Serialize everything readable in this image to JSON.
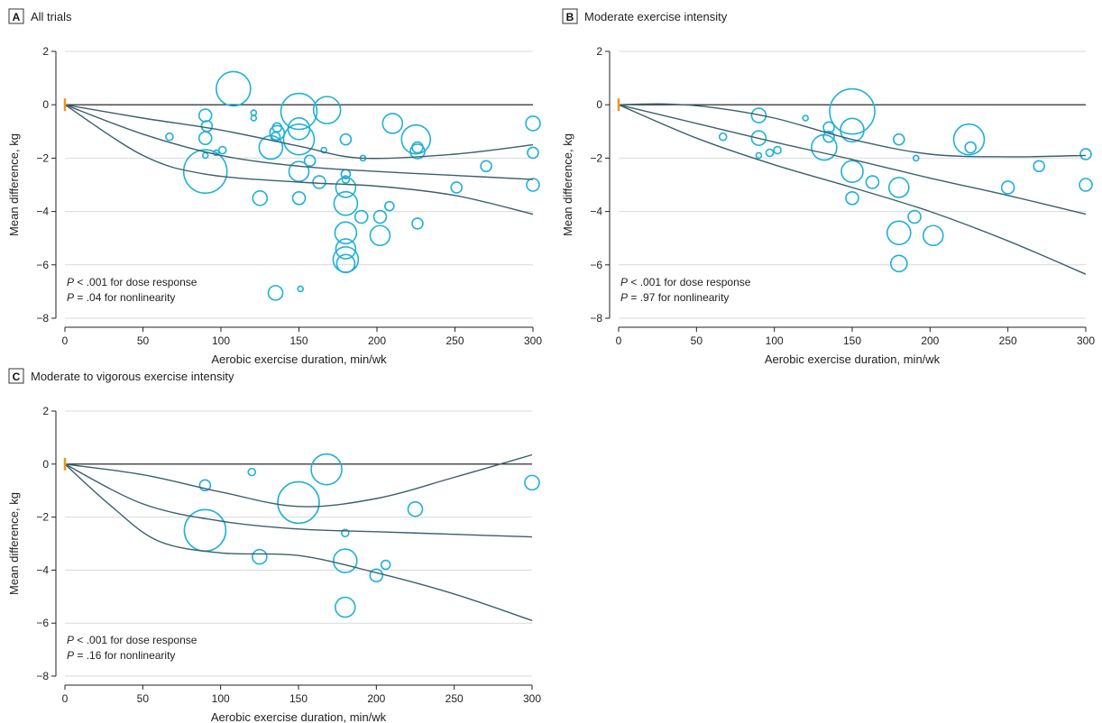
{
  "colors": {
    "bubble": "#1fb0d8",
    "curve": "#3d5f6b",
    "grid": "#d9d9d9",
    "axis": "#222222",
    "zero_line": "#111111",
    "origin_marker": "#f0961e"
  },
  "chart_data": [
    {
      "panel_letter": "A",
      "title": "All trials",
      "type": "scatter",
      "xlabel": "Aerobic exercise duration, min/wk",
      "ylabel": "Mean difference, kg",
      "xlim": [
        0,
        300
      ],
      "ylim": [
        -8,
        2
      ],
      "xticks": [
        0,
        50,
        100,
        150,
        200,
        250,
        300
      ],
      "yticks": [
        2,
        0,
        -2,
        -4,
        -6,
        -8
      ],
      "grid": true,
      "annotations": [
        {
          "italic": "P",
          "text": " < .001 for dose response"
        },
        {
          "italic": "P",
          "text": " = .04 for nonlinearity"
        }
      ],
      "points": [
        {
          "x": 108,
          "y": 0.6,
          "r": 19
        },
        {
          "x": 168,
          "y": -0.2,
          "r": 15
        },
        {
          "x": 150,
          "y": -0.25,
          "r": 20
        },
        {
          "x": 150,
          "y": -1.3,
          "r": 17
        },
        {
          "x": 150,
          "y": -0.9,
          "r": 12
        },
        {
          "x": 150,
          "y": -2.5,
          "r": 11
        },
        {
          "x": 210,
          "y": -0.7,
          "r": 11
        },
        {
          "x": 225,
          "y": -1.3,
          "r": 16
        },
        {
          "x": 226,
          "y": -1.6,
          "r": 6
        },
        {
          "x": 226,
          "y": -1.75,
          "r": 8
        },
        {
          "x": 300,
          "y": -0.7,
          "r": 8
        },
        {
          "x": 300,
          "y": -1.8,
          "r": 6
        },
        {
          "x": 300,
          "y": -3.0,
          "r": 7
        },
        {
          "x": 90,
          "y": -2.5,
          "r": 24
        },
        {
          "x": 90,
          "y": -0.4,
          "r": 7
        },
        {
          "x": 91,
          "y": -0.8,
          "r": 6
        },
        {
          "x": 90,
          "y": -1.25,
          "r": 7
        },
        {
          "x": 90,
          "y": -1.9,
          "r": 3
        },
        {
          "x": 67,
          "y": -1.2,
          "r": 4
        },
        {
          "x": 97,
          "y": -1.8,
          "r": 3
        },
        {
          "x": 101,
          "y": -1.7,
          "r": 4
        },
        {
          "x": 121,
          "y": -0.3,
          "r": 3
        },
        {
          "x": 121,
          "y": -0.5,
          "r": 3
        },
        {
          "x": 132,
          "y": -1.6,
          "r": 13
        },
        {
          "x": 136,
          "y": -0.85,
          "r": 5
        },
        {
          "x": 136,
          "y": -1.05,
          "r": 8
        },
        {
          "x": 135,
          "y": -1.2,
          "r": 5
        },
        {
          "x": 125,
          "y": -3.5,
          "r": 8
        },
        {
          "x": 150,
          "y": -3.5,
          "r": 7
        },
        {
          "x": 157,
          "y": -2.1,
          "r": 6
        },
        {
          "x": 163,
          "y": -2.9,
          "r": 7
        },
        {
          "x": 166,
          "y": -1.7,
          "r": 3
        },
        {
          "x": 180,
          "y": -1.3,
          "r": 6
        },
        {
          "x": 180,
          "y": -2.6,
          "r": 5
        },
        {
          "x": 180,
          "y": -2.8,
          "r": 4
        },
        {
          "x": 180,
          "y": -3.1,
          "r": 11
        },
        {
          "x": 180,
          "y": -3.7,
          "r": 13
        },
        {
          "x": 180,
          "y": -4.8,
          "r": 12
        },
        {
          "x": 180,
          "y": -5.4,
          "r": 11
        },
        {
          "x": 180,
          "y": -5.8,
          "r": 14
        },
        {
          "x": 180,
          "y": -5.95,
          "r": 10
        },
        {
          "x": 190,
          "y": -4.2,
          "r": 7
        },
        {
          "x": 191,
          "y": -2.0,
          "r": 3
        },
        {
          "x": 202,
          "y": -4.9,
          "r": 11
        },
        {
          "x": 202,
          "y": -4.2,
          "r": 7
        },
        {
          "x": 208,
          "y": -3.8,
          "r": 5
        },
        {
          "x": 226,
          "y": -4.45,
          "r": 6
        },
        {
          "x": 251,
          "y": -3.1,
          "r": 6
        },
        {
          "x": 270,
          "y": -2.3,
          "r": 6
        },
        {
          "x": 135,
          "y": -7.05,
          "r": 8
        },
        {
          "x": 151,
          "y": -6.9,
          "r": 3
        }
      ],
      "curves": {
        "fit": [
          [
            0,
            0
          ],
          [
            50,
            -1.1
          ],
          [
            100,
            -1.9
          ],
          [
            150,
            -2.3
          ],
          [
            200,
            -2.5
          ],
          [
            250,
            -2.65
          ],
          [
            300,
            -2.8
          ]
        ],
        "upper": [
          [
            0,
            0
          ],
          [
            50,
            -0.5
          ],
          [
            100,
            -0.95
          ],
          [
            150,
            -1.55
          ],
          [
            190,
            -2.0
          ],
          [
            250,
            -1.85
          ],
          [
            300,
            -1.5
          ]
        ],
        "lower": [
          [
            0,
            0
          ],
          [
            50,
            -1.9
          ],
          [
            90,
            -2.6
          ],
          [
            150,
            -2.9
          ],
          [
            200,
            -3.05
          ],
          [
            250,
            -3.4
          ],
          [
            300,
            -4.1
          ]
        ]
      }
    },
    {
      "panel_letter": "B",
      "title": "Moderate exercise intensity",
      "type": "scatter",
      "xlabel": "Aerobic exercise duration, min/wk",
      "ylabel": "Mean difference, kg",
      "xlim": [
        0,
        300
      ],
      "ylim": [
        -8,
        2
      ],
      "xticks": [
        0,
        50,
        100,
        150,
        200,
        250,
        300
      ],
      "yticks": [
        2,
        0,
        -2,
        -4,
        -6,
        -8
      ],
      "grid": true,
      "annotations": [
        {
          "italic": "P",
          "text": " < .001 for dose response"
        },
        {
          "italic": "P",
          "text": " = .97 for nonlinearity"
        }
      ],
      "points": [
        {
          "x": 150,
          "y": -0.25,
          "r": 25
        },
        {
          "x": 150,
          "y": -0.95,
          "r": 13
        },
        {
          "x": 225,
          "y": -1.3,
          "r": 17
        },
        {
          "x": 226,
          "y": -1.6,
          "r": 6
        },
        {
          "x": 90,
          "y": -0.4,
          "r": 8
        },
        {
          "x": 90,
          "y": -1.25,
          "r": 8
        },
        {
          "x": 90,
          "y": -1.9,
          "r": 3
        },
        {
          "x": 67,
          "y": -1.2,
          "r": 4
        },
        {
          "x": 97,
          "y": -1.8,
          "r": 4
        },
        {
          "x": 102,
          "y": -1.7,
          "r": 4
        },
        {
          "x": 120,
          "y": -0.5,
          "r": 3
        },
        {
          "x": 135,
          "y": -0.85,
          "r": 6
        },
        {
          "x": 135,
          "y": -1.2,
          "r": 6
        },
        {
          "x": 132,
          "y": -1.6,
          "r": 14
        },
        {
          "x": 150,
          "y": -2.5,
          "r": 12
        },
        {
          "x": 150,
          "y": -3.5,
          "r": 7
        },
        {
          "x": 163,
          "y": -2.9,
          "r": 7
        },
        {
          "x": 180,
          "y": -1.3,
          "r": 6
        },
        {
          "x": 180,
          "y": -3.1,
          "r": 11
        },
        {
          "x": 180,
          "y": -4.8,
          "r": 13
        },
        {
          "x": 180,
          "y": -5.95,
          "r": 9
        },
        {
          "x": 190,
          "y": -4.2,
          "r": 7
        },
        {
          "x": 191,
          "y": -2.0,
          "r": 3
        },
        {
          "x": 202,
          "y": -4.9,
          "r": 11
        },
        {
          "x": 250,
          "y": -3.1,
          "r": 7
        },
        {
          "x": 270,
          "y": -2.3,
          "r": 6
        },
        {
          "x": 300,
          "y": -1.85,
          "r": 6
        },
        {
          "x": 300,
          "y": -3.0,
          "r": 7
        }
      ],
      "curves": {
        "fit": [
          [
            0,
            0
          ],
          [
            50,
            -0.7
          ],
          [
            100,
            -1.4
          ],
          [
            150,
            -2.05
          ],
          [
            200,
            -2.75
          ],
          [
            250,
            -3.4
          ],
          [
            300,
            -4.1
          ]
        ],
        "upper": [
          [
            0,
            0
          ],
          [
            30,
            0.03
          ],
          [
            60,
            -0.1
          ],
          [
            100,
            -0.5
          ],
          [
            150,
            -1.3
          ],
          [
            200,
            -1.85
          ],
          [
            250,
            -1.95
          ],
          [
            300,
            -1.9
          ]
        ],
        "lower": [
          [
            0,
            0
          ],
          [
            50,
            -1.25
          ],
          [
            100,
            -2.25
          ],
          [
            150,
            -3.1
          ],
          [
            200,
            -4.0
          ],
          [
            250,
            -5.1
          ],
          [
            300,
            -6.35
          ]
        ]
      }
    },
    {
      "panel_letter": "C",
      "title": "Moderate to vigorous exercise intensity",
      "type": "scatter",
      "xlabel": "Aerobic exercise duration, min/wk",
      "ylabel": "Mean difference, kg",
      "xlim": [
        0,
        300
      ],
      "ylim": [
        -8,
        2
      ],
      "xticks": [
        0,
        50,
        100,
        150,
        200,
        250,
        300
      ],
      "yticks": [
        2,
        0,
        -2,
        -4,
        -6,
        -8
      ],
      "grid": true,
      "annotations": [
        {
          "italic": "P",
          "text": " < .001 for dose response"
        },
        {
          "italic": "P",
          "text": " = .16 for nonlinearity"
        }
      ],
      "points": [
        {
          "x": 168,
          "y": -0.2,
          "r": 17
        },
        {
          "x": 150,
          "y": -1.45,
          "r": 23
        },
        {
          "x": 90,
          "y": -2.5,
          "r": 23
        },
        {
          "x": 90,
          "y": -0.8,
          "r": 6
        },
        {
          "x": 120,
          "y": -0.3,
          "r": 4
        },
        {
          "x": 125,
          "y": -3.5,
          "r": 8
        },
        {
          "x": 180,
          "y": -2.6,
          "r": 4
        },
        {
          "x": 180,
          "y": -3.65,
          "r": 13
        },
        {
          "x": 180,
          "y": -5.4,
          "r": 11
        },
        {
          "x": 200,
          "y": -4.2,
          "r": 7
        },
        {
          "x": 206,
          "y": -3.8,
          "r": 5
        },
        {
          "x": 225,
          "y": -1.7,
          "r": 8
        },
        {
          "x": 300,
          "y": -0.7,
          "r": 8
        }
      ],
      "curves": {
        "fit": [
          [
            0,
            0
          ],
          [
            50,
            -1.5
          ],
          [
            100,
            -2.15
          ],
          [
            150,
            -2.45
          ],
          [
            200,
            -2.55
          ],
          [
            250,
            -2.65
          ],
          [
            300,
            -2.75
          ]
        ],
        "upper": [
          [
            0,
            0
          ],
          [
            50,
            -0.4
          ],
          [
            100,
            -1.05
          ],
          [
            150,
            -1.6
          ],
          [
            200,
            -1.3
          ],
          [
            250,
            -0.5
          ],
          [
            300,
            0.35
          ]
        ],
        "lower": [
          [
            0,
            0
          ],
          [
            30,
            -1.6
          ],
          [
            60,
            -2.9
          ],
          [
            100,
            -3.35
          ],
          [
            150,
            -3.45
          ],
          [
            200,
            -4.1
          ],
          [
            250,
            -4.9
          ],
          [
            300,
            -5.9
          ]
        ]
      }
    }
  ]
}
